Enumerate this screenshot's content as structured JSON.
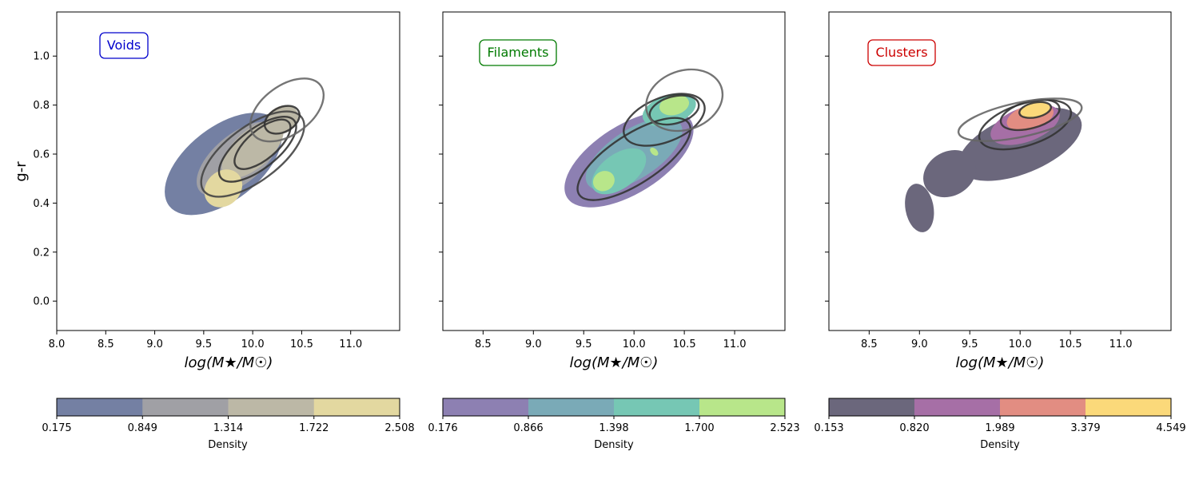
{
  "chart_data": [
    {
      "type": "kde-contour",
      "region_label": "Voids",
      "region_color": "#0000cc",
      "xlabel": "log(M★/M☉)",
      "ylabel": "g-r",
      "xlim": [
        8.0,
        11.5
      ],
      "ylim": [
        -0.12,
        1.18
      ],
      "x_ticks": [
        "8.0",
        "8.5",
        "9.0",
        "9.5",
        "10.0",
        "10.5",
        "11.0"
      ],
      "y_ticks": [
        "0.0",
        "0.2",
        "0.4",
        "0.6",
        "0.8",
        "1.0"
      ],
      "filled_levels": [
        {
          "level": 0.175,
          "color": "#7480a3",
          "blobs": [
            {
              "cx": 9.7,
              "cy": 0.56,
              "sx": 1.4,
              "sy": 0.15,
              "angle_deg": 38
            }
          ]
        },
        {
          "level": 0.849,
          "color": "#a0a0a5",
          "blobs": [
            {
              "cx": 9.85,
              "cy": 0.58,
              "sx": 1.02,
              "sy": 0.1,
              "angle_deg": 40
            }
          ]
        },
        {
          "level": 1.314,
          "color": "#bcb8a6",
          "blobs": [
            {
              "cx": 10.0,
              "cy": 0.62,
              "sx": 0.78,
              "sy": 0.075,
              "angle_deg": 42
            },
            {
              "cx": 10.3,
              "cy": 0.74,
              "sx": 0.35,
              "sy": 0.055,
              "angle_deg": 30
            }
          ]
        },
        {
          "level": 1.722,
          "color": "#e3d8a0",
          "blobs": [
            {
              "cx": 9.7,
              "cy": 0.46,
              "sx": 0.42,
              "sy": 0.07,
              "angle_deg": 45
            }
          ]
        }
      ],
      "overlay_contours": [
        {
          "cx": 10.0,
          "cy": 0.6,
          "sx": 1.25,
          "sy": 0.11,
          "angle_deg": 37,
          "color": "#444444"
        },
        {
          "cx": 10.05,
          "cy": 0.62,
          "sx": 0.95,
          "sy": 0.08,
          "angle_deg": 38,
          "color": "#333333"
        },
        {
          "cx": 10.1,
          "cy": 0.64,
          "sx": 0.7,
          "sy": 0.06,
          "angle_deg": 40,
          "color": "#333333"
        },
        {
          "cx": 10.3,
          "cy": 0.74,
          "sx": 0.38,
          "sy": 0.05,
          "angle_deg": 28,
          "color": "#333333"
        },
        {
          "cx": 10.35,
          "cy": 0.78,
          "sx": 0.85,
          "sy": 0.1,
          "angle_deg": 36,
          "color": "#666666"
        }
      ],
      "colorbar": {
        "label": "Density",
        "tick_labels": [
          "0.175",
          "0.849",
          "1.314",
          "1.722",
          "2.508"
        ],
        "colors": [
          "#7480a3",
          "#a0a0a5",
          "#bcb8a6",
          "#e3d8a0"
        ]
      }
    },
    {
      "type": "kde-contour",
      "region_label": "Filaments",
      "region_color": "#007a00",
      "xlabel": "log(M★/M☉)",
      "ylabel": "",
      "xlim": [
        8.1,
        11.5
      ],
      "ylim": [
        -0.12,
        1.18
      ],
      "x_ticks": [
        "8.5",
        "9.0",
        "9.5",
        "10.0",
        "10.5",
        "11.0"
      ],
      "y_ticks": [],
      "filled_levels": [
        {
          "level": 0.176,
          "color": "#8d80b2",
          "blobs": [
            {
              "cx": 9.95,
              "cy": 0.58,
              "sx": 1.45,
              "sy": 0.14,
              "angle_deg": 32
            }
          ]
        },
        {
          "level": 0.866,
          "color": "#7aaab7",
          "blobs": [
            {
              "cx": 10.0,
              "cy": 0.6,
              "sx": 1.1,
              "sy": 0.1,
              "angle_deg": 33
            }
          ]
        },
        {
          "level": 1.398,
          "color": "#76c7b4",
          "blobs": [
            {
              "cx": 9.85,
              "cy": 0.53,
              "sx": 0.62,
              "sy": 0.07,
              "angle_deg": 36
            },
            {
              "cx": 10.35,
              "cy": 0.78,
              "sx": 0.55,
              "sy": 0.06,
              "angle_deg": 18
            }
          ]
        },
        {
          "level": 1.7,
          "color": "#b8e68a",
          "blobs": [
            {
              "cx": 9.7,
              "cy": 0.49,
              "sx": 0.22,
              "sy": 0.04,
              "angle_deg": 30
            },
            {
              "cx": 10.4,
              "cy": 0.8,
              "sx": 0.3,
              "sy": 0.04,
              "angle_deg": 15
            },
            {
              "cx": 10.2,
              "cy": 0.61,
              "sx": 0.06,
              "sy": 0.02,
              "angle_deg": 45
            }
          ]
        }
      ],
      "overlay_contours": [
        {
          "cx": 10.0,
          "cy": 0.58,
          "sx": 1.3,
          "sy": 0.1,
          "angle_deg": 33,
          "color": "#333333"
        },
        {
          "cx": 10.3,
          "cy": 0.74,
          "sx": 0.85,
          "sy": 0.09,
          "angle_deg": 22,
          "color": "#333333"
        },
        {
          "cx": 10.4,
          "cy": 0.78,
          "sx": 0.5,
          "sy": 0.055,
          "angle_deg": 15,
          "color": "#333333"
        },
        {
          "cx": 10.5,
          "cy": 0.82,
          "sx": 0.78,
          "sy": 0.12,
          "angle_deg": 20,
          "color": "#666666"
        }
      ],
      "colorbar": {
        "label": "Density",
        "tick_labels": [
          "0.176",
          "0.866",
          "1.398",
          "1.700",
          "2.523"
        ],
        "colors": [
          "#8d80b2",
          "#7aaab7",
          "#76c7b4",
          "#b8e68a"
        ]
      }
    },
    {
      "type": "kde-contour",
      "region_label": "Clusters",
      "region_color": "#cc0000",
      "xlabel": "log(M★/M☉)",
      "ylabel": "",
      "xlim": [
        8.1,
        11.5
      ],
      "ylim": [
        -0.12,
        1.18
      ],
      "x_ticks": [
        "8.5",
        "9.0",
        "9.5",
        "10.0",
        "10.5",
        "11.0"
      ],
      "y_ticks": [],
      "filled_levels": [
        {
          "level": 0.153,
          "color": "#6b677c",
          "blobs": [
            {
              "cx": 10.0,
              "cy": 0.64,
              "sx": 1.3,
              "sy": 0.12,
              "angle_deg": 22
            },
            {
              "cx": 9.0,
              "cy": 0.38,
              "sx": 0.28,
              "sy": 0.1,
              "angle_deg": 10
            },
            {
              "cx": 9.3,
              "cy": 0.52,
              "sx": 0.55,
              "sy": 0.09,
              "angle_deg": 30
            }
          ]
        },
        {
          "level": 0.82,
          "color": "#a66fa6",
          "blobs": [
            {
              "cx": 10.05,
              "cy": 0.72,
              "sx": 0.72,
              "sy": 0.07,
              "angle_deg": 20
            }
          ]
        },
        {
          "level": 1.989,
          "color": "#e28d82",
          "blobs": [
            {
              "cx": 10.1,
              "cy": 0.75,
              "sx": 0.48,
              "sy": 0.05,
              "angle_deg": 17
            }
          ]
        },
        {
          "level": 3.379,
          "color": "#fbd97a",
          "blobs": [
            {
              "cx": 10.15,
              "cy": 0.78,
              "sx": 0.3,
              "sy": 0.032,
              "angle_deg": 12
            }
          ]
        }
      ],
      "overlay_contours": [
        {
          "cx": 10.05,
          "cy": 0.72,
          "sx": 0.95,
          "sy": 0.085,
          "angle_deg": 18,
          "color": "#333333"
        },
        {
          "cx": 10.1,
          "cy": 0.76,
          "sx": 0.6,
          "sy": 0.055,
          "angle_deg": 15,
          "color": "#333333"
        },
        {
          "cx": 10.15,
          "cy": 0.78,
          "sx": 0.32,
          "sy": 0.03,
          "angle_deg": 12,
          "color": "#333333"
        },
        {
          "cx": 10.0,
          "cy": 0.74,
          "sx": 1.25,
          "sy": 0.07,
          "angle_deg": 12,
          "color": "#666666"
        }
      ],
      "colorbar": {
        "label": "Density",
        "tick_labels": [
          "0.153",
          "0.820",
          "1.989",
          "3.379",
          "4.549"
        ],
        "colors": [
          "#6b677c",
          "#a66fa6",
          "#e28d82",
          "#fbd97a"
        ]
      }
    }
  ]
}
